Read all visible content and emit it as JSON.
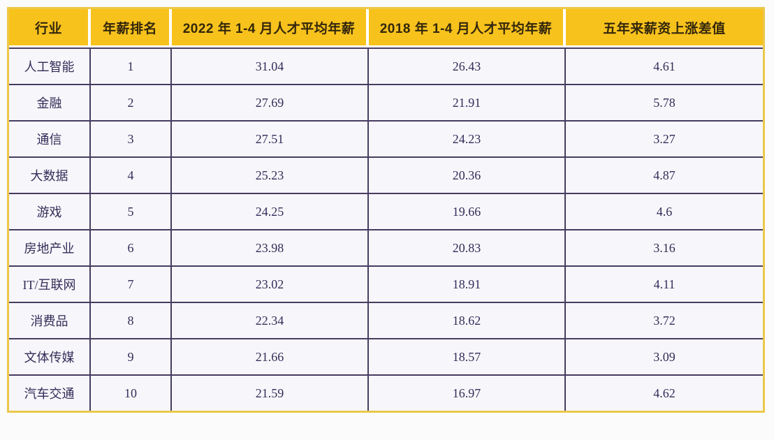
{
  "colors": {
    "header_bg": "#F8C21D",
    "outer_border": "#EBC84A",
    "cell_border": "#473C60",
    "cell_bg": "#F7F7FB",
    "header_text": "#33270B",
    "body_text": "#332C58"
  },
  "chart_data": {
    "type": "table",
    "title": "",
    "columns": [
      "行业",
      "年薪排名",
      "2022 年 1-4 月人才平均年薪",
      "2018 年 1-4 月人才平均年薪",
      "五年来薪资上涨差值"
    ],
    "rows": [
      [
        "人工智能",
        "1",
        "31.04",
        "26.43",
        "4.61"
      ],
      [
        "金融",
        "2",
        "27.69",
        "21.91",
        "5.78"
      ],
      [
        "通信",
        "3",
        "27.51",
        "24.23",
        "3.27"
      ],
      [
        "大数据",
        "4",
        "25.23",
        "20.36",
        "4.87"
      ],
      [
        "游戏",
        "5",
        "24.25",
        "19.66",
        "4.6"
      ],
      [
        "房地产业",
        "6",
        "23.98",
        "20.83",
        "3.16"
      ],
      [
        "IT/互联网",
        "7",
        "23.02",
        "18.91",
        "4.11"
      ],
      [
        "消费品",
        "8",
        "22.34",
        "18.62",
        "3.72"
      ],
      [
        "文体传媒",
        "9",
        "21.66",
        "18.57",
        "3.09"
      ],
      [
        "汽车交通",
        "10",
        "21.59",
        "16.97",
        "4.62"
      ]
    ]
  }
}
